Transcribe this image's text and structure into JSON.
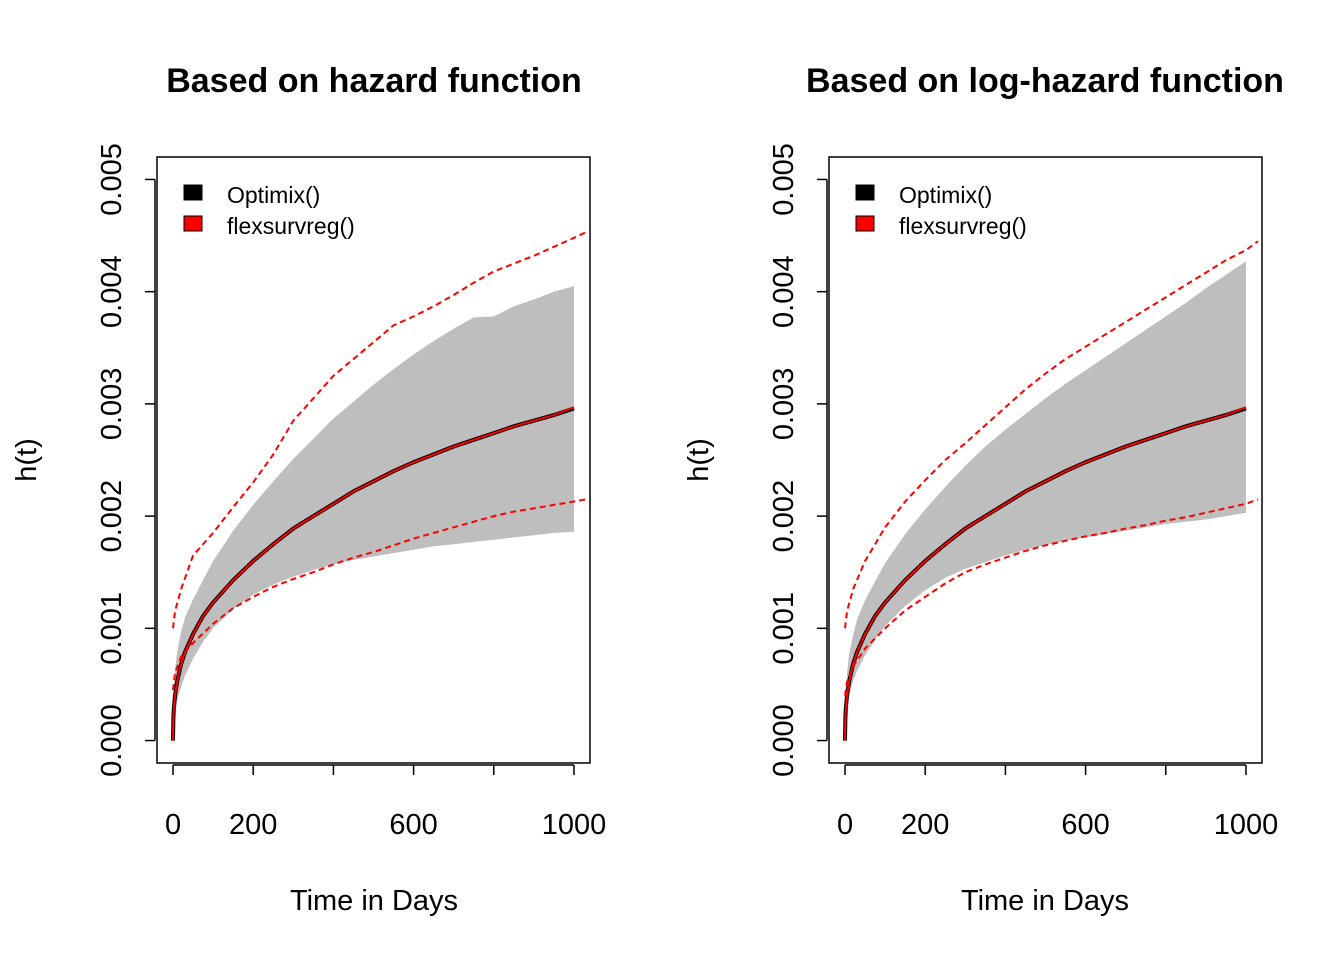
{
  "chart_data": [
    {
      "type": "line",
      "title": "Based on hazard function",
      "xlabel": "Time in Days",
      "ylabel": "h(t)",
      "xlim": [
        -40,
        1040
      ],
      "ylim": [
        -0.0002,
        0.0052
      ],
      "x_ticks": [
        0,
        200,
        400,
        600,
        800,
        1000
      ],
      "x_tick_labels": [
        "0",
        "200",
        "",
        "600",
        "",
        "1000"
      ],
      "y_ticks": [
        0.0,
        0.001,
        0.002,
        0.003,
        0.004,
        0.005
      ],
      "y_tick_labels": [
        "0.000",
        "0.001",
        "0.002",
        "0.003",
        "0.004",
        "0.005"
      ],
      "grid": false,
      "legend": {
        "position": "top-left",
        "entries": [
          "Optimix()",
          "flexsurvreg()"
        ],
        "colors": [
          "#000000",
          "#ff0000"
        ]
      },
      "x": [
        0,
        1,
        2,
        5,
        10,
        20,
        30,
        50,
        75,
        100,
        150,
        200,
        250,
        300,
        350,
        400,
        450,
        500,
        550,
        600,
        650,
        700,
        750,
        800,
        850,
        900,
        950,
        1000
      ],
      "ci_band": {
        "color": "#bebebe",
        "lower": [
          -2e-05,
          0.0001,
          0.00015,
          0.00025,
          0.00035,
          0.00048,
          0.00058,
          0.00073,
          0.00088,
          0.001,
          0.00117,
          0.0013,
          0.00139,
          0.00146,
          0.00152,
          0.00157,
          0.00161,
          0.00164,
          0.00167,
          0.0017,
          0.00173,
          0.00175,
          0.00177,
          0.00179,
          0.00181,
          0.00183,
          0.00185,
          0.00186
        ],
        "upper": [
          5e-05,
          0.0003,
          0.00045,
          0.00063,
          0.00078,
          0.00097,
          0.0011,
          0.00126,
          0.00143,
          0.0016,
          0.00187,
          0.0021,
          0.00231,
          0.00251,
          0.00269,
          0.00287,
          0.00302,
          0.00317,
          0.00331,
          0.00344,
          0.00356,
          0.00367,
          0.00377,
          0.00378,
          0.00387,
          0.00393,
          0.004,
          0.00405
        ]
      },
      "series": [
        {
          "name": "Optimix()",
          "color": "#000000",
          "style": "solid",
          "values": [
            0.0,
            0.0002,
            0.00028,
            0.0004,
            0.00052,
            0.00068,
            0.00079,
            0.00095,
            0.00111,
            0.00123,
            0.00143,
            0.0016,
            0.00175,
            0.00189,
            0.002,
            0.00211,
            0.00222,
            0.00231,
            0.0024,
            0.00248,
            0.00255,
            0.00262,
            0.00268,
            0.00274,
            0.0028,
            0.00285,
            0.0029,
            0.00296
          ]
        },
        {
          "name": "flexsurvreg()",
          "color": "#ff0000",
          "style": "solid",
          "values": [
            0.0,
            0.0002,
            0.00028,
            0.0004,
            0.00052,
            0.00068,
            0.00079,
            0.00095,
            0.00111,
            0.00123,
            0.00143,
            0.0016,
            0.00175,
            0.00189,
            0.002,
            0.00211,
            0.00222,
            0.00231,
            0.0024,
            0.00248,
            0.00255,
            0.00262,
            0.00268,
            0.00274,
            0.0028,
            0.00285,
            0.0029,
            0.00297
          ]
        },
        {
          "name": "",
          "color": "#ff0000",
          "style": "dashed",
          "x": [
            0,
            5,
            20,
            50,
            100,
            150,
            200,
            250,
            300,
            350,
            400,
            450,
            500,
            550,
            600,
            650,
            700,
            750,
            800,
            850,
            900,
            950,
            1000,
            1030
          ],
          "values": [
            0.00045,
            0.0006,
            0.00075,
            0.00087,
            0.00104,
            0.00118,
            0.00128,
            0.00137,
            0.00144,
            0.0015,
            0.00157,
            0.00163,
            0.00168,
            0.00174,
            0.0018,
            0.00185,
            0.0019,
            0.00195,
            0.002,
            0.00204,
            0.00207,
            0.0021,
            0.00213,
            0.00215
          ]
        },
        {
          "name": "",
          "color": "#ff0000",
          "style": "dashed",
          "x": [
            0,
            5,
            20,
            50,
            100,
            150,
            200,
            250,
            300,
            350,
            400,
            450,
            500,
            550,
            600,
            650,
            700,
            750,
            800,
            850,
            900,
            950,
            1000,
            1030
          ],
          "values": [
            0.001,
            0.00115,
            0.00135,
            0.00165,
            0.00185,
            0.00208,
            0.0023,
            0.00255,
            0.00285,
            0.00305,
            0.00325,
            0.0034,
            0.00355,
            0.0037,
            0.00378,
            0.00387,
            0.00397,
            0.00408,
            0.00418,
            0.00425,
            0.00432,
            0.0044,
            0.00448,
            0.00453
          ]
        }
      ]
    },
    {
      "type": "line",
      "title": "Based on log-hazard function",
      "xlabel": "Time in Days",
      "ylabel": "h(t)",
      "xlim": [
        -40,
        1040
      ],
      "ylim": [
        -0.0002,
        0.0052
      ],
      "x_ticks": [
        0,
        200,
        400,
        600,
        800,
        1000
      ],
      "x_tick_labels": [
        "0",
        "200",
        "",
        "600",
        "",
        "1000"
      ],
      "y_ticks": [
        0.0,
        0.001,
        0.002,
        0.003,
        0.004,
        0.005
      ],
      "y_tick_labels": [
        "0.000",
        "0.001",
        "0.002",
        "0.003",
        "0.004",
        "0.005"
      ],
      "grid": false,
      "legend": {
        "position": "top-left",
        "entries": [
          "Optimix()",
          "flexsurvreg()"
        ],
        "colors": [
          "#000000",
          "#ff0000"
        ]
      },
      "x": [
        0,
        1,
        2,
        5,
        10,
        20,
        30,
        50,
        75,
        100,
        150,
        200,
        250,
        300,
        350,
        400,
        450,
        500,
        550,
        600,
        650,
        700,
        750,
        800,
        850,
        900,
        950,
        1000
      ],
      "ci_band": {
        "color": "#bebebe",
        "lower": [
          3e-05,
          0.00012,
          0.00018,
          0.00029,
          0.0004,
          0.00053,
          0.00062,
          0.00076,
          0.0009,
          0.00102,
          0.0012,
          0.00134,
          0.00145,
          0.00153,
          0.00159,
          0.00165,
          0.0017,
          0.00174,
          0.00178,
          0.00181,
          0.00184,
          0.00187,
          0.0019,
          0.00193,
          0.00195,
          0.00197,
          0.002,
          0.00203
        ],
        "upper": [
          5e-05,
          0.0003,
          0.00042,
          0.0006,
          0.00076,
          0.00094,
          0.00108,
          0.00125,
          0.00142,
          0.00158,
          0.00184,
          0.00206,
          0.00226,
          0.00245,
          0.00262,
          0.00277,
          0.00291,
          0.00305,
          0.00318,
          0.0033,
          0.00342,
          0.00354,
          0.00366,
          0.00378,
          0.0039,
          0.00403,
          0.00415,
          0.00427
        ]
      },
      "series": [
        {
          "name": "Optimix()",
          "color": "#000000",
          "style": "solid",
          "values": [
            0.0,
            0.0002,
            0.00028,
            0.0004,
            0.00052,
            0.00068,
            0.00079,
            0.00095,
            0.00111,
            0.00123,
            0.00143,
            0.0016,
            0.00175,
            0.00189,
            0.002,
            0.00211,
            0.00222,
            0.00231,
            0.0024,
            0.00248,
            0.00255,
            0.00262,
            0.00268,
            0.00274,
            0.0028,
            0.00285,
            0.0029,
            0.00296
          ]
        },
        {
          "name": "flexsurvreg()",
          "color": "#ff0000",
          "style": "solid",
          "values": [
            0.0,
            0.0002,
            0.00028,
            0.0004,
            0.00052,
            0.00068,
            0.00079,
            0.00095,
            0.00111,
            0.00123,
            0.00143,
            0.0016,
            0.00175,
            0.00189,
            0.002,
            0.00211,
            0.00222,
            0.00231,
            0.0024,
            0.00248,
            0.00255,
            0.00262,
            0.00268,
            0.00274,
            0.0028,
            0.00285,
            0.0029,
            0.00297
          ]
        },
        {
          "name": "",
          "color": "#ff0000",
          "style": "dashed",
          "x": [
            0,
            5,
            20,
            50,
            100,
            150,
            200,
            250,
            300,
            350,
            400,
            450,
            500,
            550,
            600,
            650,
            700,
            750,
            800,
            850,
            900,
            950,
            1000,
            1030
          ],
          "values": [
            0.0004,
            0.00052,
            0.00066,
            0.00082,
            0.001,
            0.00116,
            0.00128,
            0.0014,
            0.0015,
            0.00157,
            0.00163,
            0.00169,
            0.00174,
            0.00178,
            0.00182,
            0.00185,
            0.00189,
            0.00192,
            0.00196,
            0.00199,
            0.00203,
            0.00207,
            0.00211,
            0.00215
          ]
        },
        {
          "name": "",
          "color": "#ff0000",
          "style": "dashed",
          "x": [
            0,
            5,
            20,
            50,
            100,
            150,
            200,
            250,
            300,
            350,
            400,
            450,
            500,
            550,
            600,
            650,
            700,
            750,
            800,
            850,
            900,
            950,
            1000,
            1030
          ],
          "values": [
            0.001,
            0.00115,
            0.00135,
            0.0016,
            0.0019,
            0.00213,
            0.00232,
            0.0025,
            0.00265,
            0.00281,
            0.00297,
            0.00313,
            0.00327,
            0.0034,
            0.00351,
            0.00362,
            0.00373,
            0.00384,
            0.00395,
            0.00406,
            0.00417,
            0.00428,
            0.00437,
            0.00445
          ]
        }
      ]
    }
  ]
}
